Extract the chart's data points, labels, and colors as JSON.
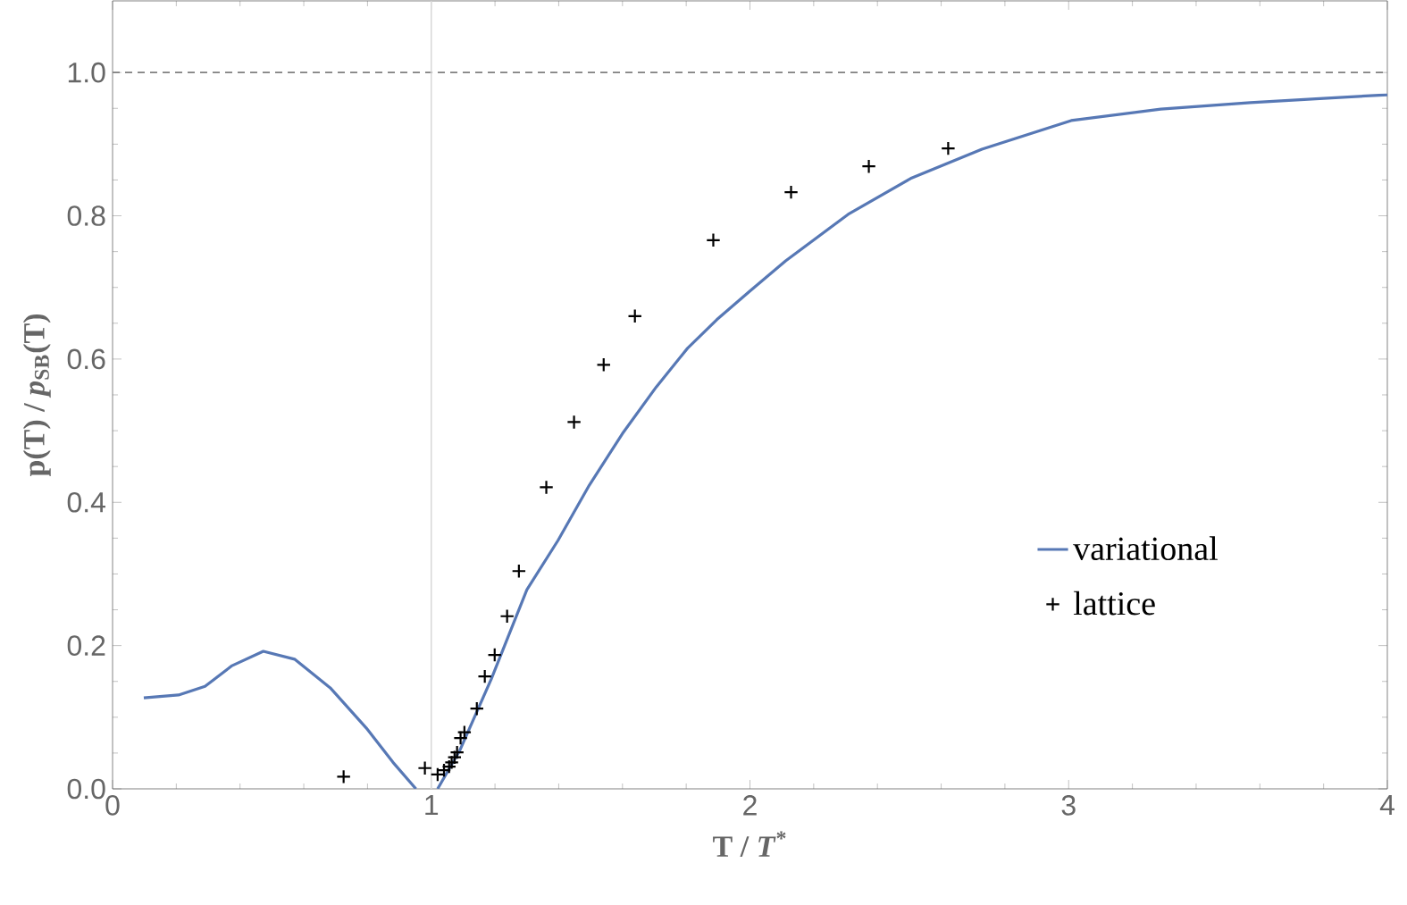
{
  "chart_data": {
    "type": "line",
    "xlabel": "T / *T*$^{*}$",
    "ylabel": "p(T) / *p*$_{SB}$(T)",
    "xlim": [
      0,
      4
    ],
    "ylim": [
      0,
      1.1
    ],
    "xticks": [
      0,
      1,
      2,
      3,
      4
    ],
    "yticks": [
      {
        "value": 0,
        "label": "0.0"
      },
      {
        "value": 0.2,
        "label": "0.2"
      },
      {
        "value": 0.4,
        "label": "0.4"
      },
      {
        "value": 0.6,
        "label": "0.6"
      },
      {
        "value": 0.8,
        "label": "0.8"
      },
      {
        "value": 1.0,
        "label": "1.0"
      }
    ],
    "grid": false,
    "legend": "right",
    "ref_lines": [
      {
        "axis": "y",
        "value": 1,
        "color": "#808080",
        "line_style": "dashed"
      },
      {
        "axis": "x",
        "value": 1,
        "color": "#d9d9d9",
        "line_style": "solid"
      }
    ],
    "series": [
      {
        "name": "variational",
        "type": "line",
        "color": "#5778b5",
        "marker": "none",
        "line_style": "solid",
        "x": [
          0.098,
          0.207,
          0.29,
          0.375,
          0.473,
          0.571,
          0.683,
          0.796,
          0.88,
          0.952,
          0.985,
          1.02,
          1.09,
          1.188,
          1.3,
          1.398,
          1.496,
          1.6,
          1.706,
          1.804,
          1.896,
          2.0,
          2.112,
          2.308,
          2.504,
          2.728,
          3.008,
          3.289,
          3.57,
          3.8,
          4.0
        ],
        "values": [
          0.127,
          0.131,
          0.143,
          0.172,
          0.192,
          0.181,
          0.141,
          0.085,
          0.037,
          0.0,
          null,
          0.0,
          0.054,
          0.153,
          0.278,
          0.347,
          0.424,
          0.496,
          0.561,
          0.615,
          0.655,
          0.695,
          0.737,
          0.802,
          0.852,
          0.893,
          0.933,
          0.949,
          0.958,
          0.964,
          0.969
        ]
      },
      {
        "name": "lattice",
        "type": "scatter",
        "color": "#000000",
        "marker": "cross",
        "x": [
          0.725,
          0.98,
          1.02,
          1.04,
          1.056,
          1.064,
          1.073,
          1.081,
          1.092,
          1.104,
          1.143,
          1.168,
          1.199,
          1.238,
          1.275,
          1.361,
          1.448,
          1.541,
          1.639,
          1.885,
          2.129,
          2.373,
          2.622
        ],
        "values": [
          0.017,
          0.029,
          0.02,
          0.026,
          0.031,
          0.037,
          0.044,
          0.051,
          0.071,
          0.079,
          0.112,
          0.157,
          0.187,
          0.241,
          0.304,
          0.421,
          0.512,
          0.592,
          0.66,
          0.766,
          0.833,
          0.869,
          0.894
        ]
      }
    ]
  }
}
